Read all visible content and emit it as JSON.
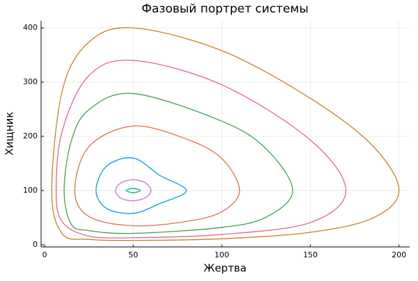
{
  "chart_data": {
    "type": "line",
    "title": "Фазовый портрет системы",
    "x_label": "Жертва",
    "y_label": "Хищник",
    "xlim": [
      -2,
      206
    ],
    "ylim": [
      -4,
      413
    ],
    "xticks": [
      0,
      50,
      100,
      150,
      200
    ],
    "yticks": [
      0,
      100,
      200,
      300,
      400
    ],
    "grid": true,
    "closed": true,
    "series": [
      {
        "color": "#00a9ad",
        "x": [
          46,
          50,
          54,
          50
        ],
        "y": [
          100,
          104,
          100,
          96
        ]
      },
      {
        "color": "#c271d2",
        "x": [
          40,
          43,
          50,
          57,
          60,
          57,
          50,
          43
        ],
        "y": [
          100,
          114,
          120,
          114,
          100,
          87,
          81,
          86
        ]
      },
      {
        "color": "#009af9",
        "x": [
          29,
          35,
          50,
          65,
          80,
          65,
          50,
          35
        ],
        "y": [
          100,
          145,
          160,
          128,
          100,
          76,
          58,
          67
        ]
      },
      {
        "color": "#e26f46",
        "x": [
          17,
          25,
          50,
          80,
          100,
          110,
          100,
          80,
          50,
          25
        ],
        "y": [
          100,
          181,
          219,
          195,
          159,
          100,
          61,
          43,
          35,
          52
        ]
      },
      {
        "color": "#3da44d",
        "x": [
          11,
          15,
          25,
          50,
          100,
          125,
          140,
          125,
          100,
          50,
          25,
          15
        ],
        "y": [
          100,
          191,
          249,
          279,
          228,
          177,
          100,
          51,
          32,
          21,
          26,
          38
        ]
      },
      {
        "color": "#ed5e93",
        "x": [
          6.5,
          10,
          25,
          50,
          100,
          150,
          170,
          150,
          100,
          50,
          25,
          10
        ],
        "y": [
          100,
          211,
          312,
          340,
          295,
          193,
          100,
          41,
          19,
          13,
          16,
          42
        ]
      },
      {
        "color": "#c68225",
        "x": [
          4,
          10,
          25,
          50,
          100,
          150,
          185,
          200,
          185,
          150,
          100,
          50,
          25,
          10
        ],
        "y": [
          100,
          285,
          374,
          400,
          358,
          270,
          183,
          100,
          49,
          23,
          11,
          8,
          10,
          20
        ]
      }
    ]
  }
}
